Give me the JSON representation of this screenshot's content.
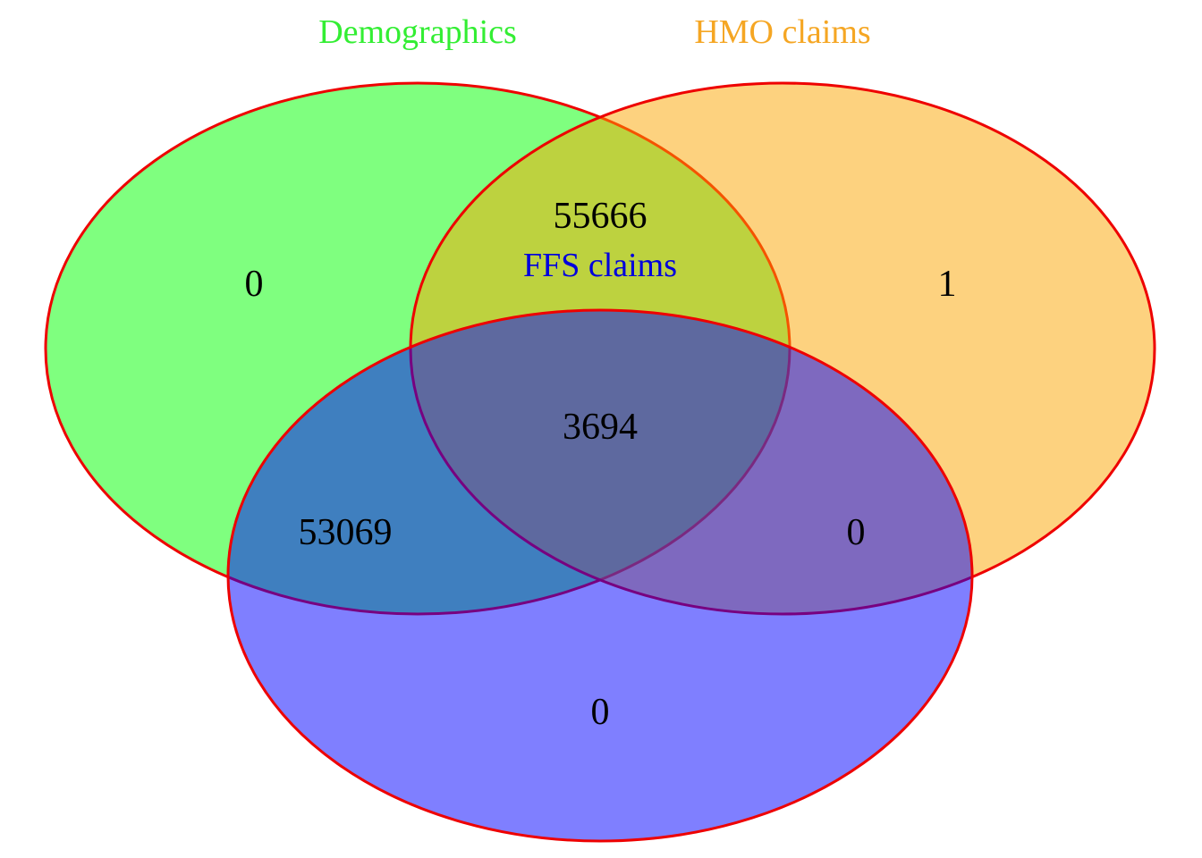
{
  "sets": {
    "demographics": {
      "label": "Demographics",
      "color": "#00ff00",
      "label_color": "#33ee33"
    },
    "hmo": {
      "label": "HMO claims",
      "color": "#fba500",
      "label_color": "#f5a623"
    },
    "ffs": {
      "label": "FFS claims",
      "color": "#0000ff",
      "label_color": "#0000dd"
    }
  },
  "outline_color": "#ee0000",
  "regions": {
    "demographics_only": "0",
    "hmo_only": "1",
    "ffs_only": "0",
    "demographics_hmo": "55666",
    "demographics_ffs": "53069",
    "hmo_ffs": "0",
    "all_three": "3694"
  }
}
